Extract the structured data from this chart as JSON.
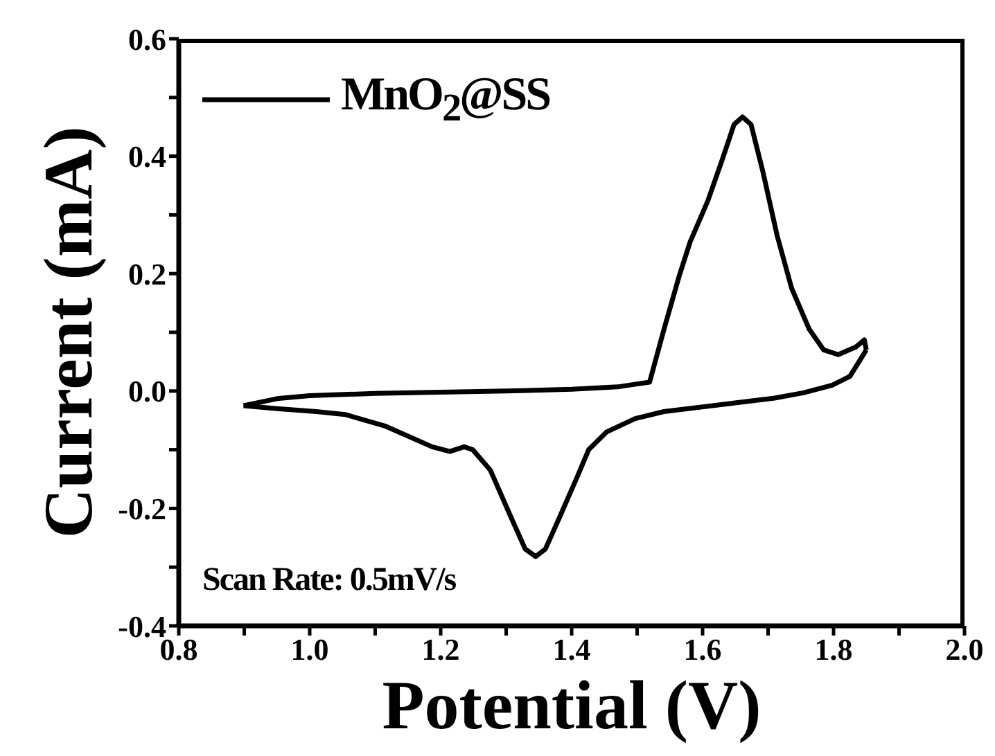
{
  "chart_data": {
    "type": "line",
    "xlabel": "Potential (V)",
    "ylabel": "Current (mA)",
    "annotations": [
      "Scan Rate: 0.5mV/s"
    ],
    "series": [
      {
        "name": "MnO$_{2}$@SS",
        "color": "#000000",
        "x": [
          0.899,
          0.95,
          1.0,
          1.1,
          1.2,
          1.3,
          1.4,
          1.47,
          1.5,
          1.519,
          1.541,
          1.564,
          1.581,
          1.608,
          1.63,
          1.648,
          1.661,
          1.674,
          1.692,
          1.714,
          1.736,
          1.763,
          1.785,
          1.807,
          1.834,
          1.847,
          1.85
        ],
        "values": [
          -0.025,
          -0.013,
          -0.008,
          -0.004,
          -0.002,
          0.0,
          0.003,
          0.007,
          0.012,
          0.015,
          0.105,
          0.195,
          0.254,
          0.324,
          0.394,
          0.454,
          0.467,
          0.454,
          0.374,
          0.264,
          0.175,
          0.105,
          0.07,
          0.062,
          0.075,
          0.087,
          0.07
        ]
      },
      {
        "color": "#000000",
        "x": [
          1.85,
          1.825,
          1.798,
          1.754,
          1.71,
          1.63,
          1.541,
          1.497,
          1.453,
          1.426,
          1.409,
          1.382,
          1.36,
          1.345,
          1.329,
          1.307,
          1.276,
          1.249,
          1.236,
          1.214,
          1.187,
          1.116,
          1.054,
          1.01,
          0.95,
          0.899
        ],
        "values": [
          0.07,
          0.025,
          0.01,
          -0.003,
          -0.012,
          -0.023,
          -0.035,
          -0.047,
          -0.07,
          -0.1,
          -0.145,
          -0.214,
          -0.269,
          -0.282,
          -0.269,
          -0.214,
          -0.135,
          -0.1,
          -0.095,
          -0.103,
          -0.095,
          -0.06,
          -0.04,
          -0.035,
          -0.03,
          -0.025
        ]
      }
    ],
    "xlim": [
      0.8,
      2.0
    ],
    "xticks": [
      0.8,
      {
        "value": 0.9,
        "label": null
      },
      {
        "value": 1,
        "label": "1.0"
      },
      {
        "value": 1.1,
        "label": null
      },
      1.2,
      {
        "value": 1.3,
        "label": null
      },
      1.4,
      {
        "value": 1.5,
        "label": null
      },
      1.6,
      {
        "value": 1.7,
        "label": null
      },
      1.8,
      {
        "value": 1.9,
        "label": null
      },
      {
        "value": 2,
        "label": "2.0"
      }
    ],
    "ylim": [
      -0.4,
      0.6
    ],
    "yticks": [
      -0.4,
      {
        "value": -0.3,
        "label": null
      },
      -0.2,
      {
        "value": -0.1,
        "label": null
      },
      {
        "value": 0,
        "label": "0.0"
      },
      {
        "value": 0.1,
        "label": null
      },
      0.2,
      {
        "value": 0.3,
        "label": null
      },
      0.4,
      {
        "value": 0.5,
        "label": null
      },
      0.6
    ],
    "grid": false,
    "legend": "top left",
    "marker": "none",
    "line_style": "solid"
  }
}
